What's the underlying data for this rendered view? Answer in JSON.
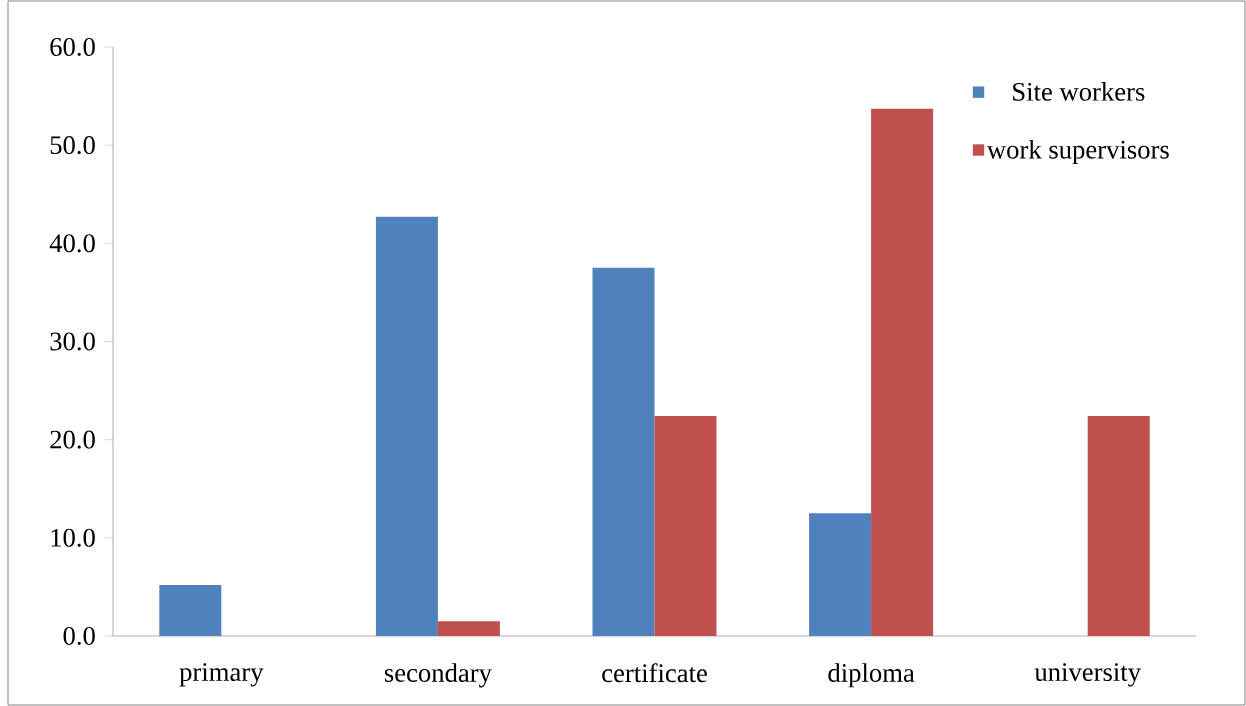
{
  "chart_data": {
    "type": "bar",
    "categories": [
      "primary",
      "secondary",
      "certificate",
      "diploma",
      "university"
    ],
    "series": [
      {
        "name": "Site workers",
        "color": "#4f81bd",
        "values": [
          5.2,
          42.7,
          37.5,
          12.5,
          0
        ]
      },
      {
        "name": "work supervisors",
        "color": "#c0504d",
        "values": [
          0,
          1.5,
          22.4,
          53.7,
          22.4
        ]
      }
    ],
    "ylim": [
      0,
      60
    ],
    "yticks": [
      {
        "value": 0,
        "label": "0.0"
      },
      {
        "value": 10,
        "label": "10.0"
      },
      {
        "value": 20,
        "label": "20.0"
      },
      {
        "value": 30,
        "label": "30.0"
      },
      {
        "value": 40,
        "label": "40.0"
      },
      {
        "value": 50,
        "label": "50.0"
      },
      {
        "value": 60,
        "label": "60.0"
      }
    ],
    "legend": "top right",
    "grid": false
  }
}
